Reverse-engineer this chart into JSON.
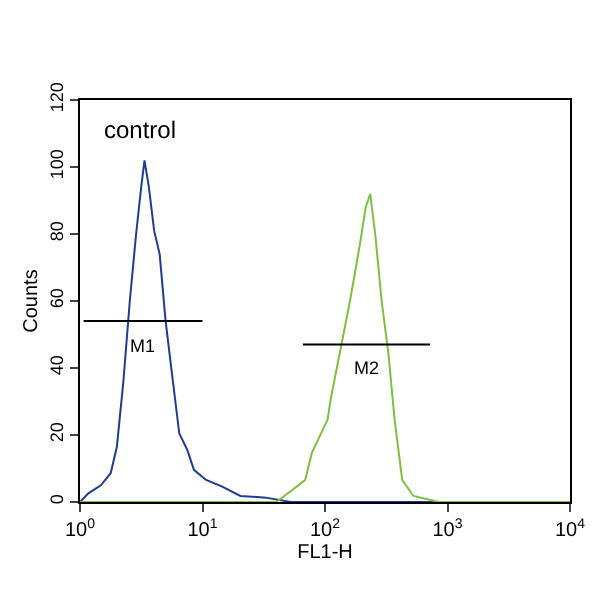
{
  "chart_data": {
    "type": "line",
    "xlabel": "FL1-H",
    "ylabel": "Counts",
    "log": "x",
    "xlim": [
      1,
      10000
    ],
    "ylim": [
      0,
      120
    ],
    "xticks": [
      {
        "value": 1,
        "label": "10$^{0}$"
      },
      {
        "value": 10,
        "label": "10$^{1}$"
      },
      {
        "value": 100,
        "label": "10$^{2}$"
      },
      {
        "value": 1000,
        "label": "10$^{3}$"
      },
      {
        "value": 10000,
        "label": "10$^{4}$"
      }
    ],
    "yticks": [
      0,
      20,
      40,
      60,
      80,
      100,
      120
    ],
    "series": [
      {
        "color": "#1f3d8c",
        "x": [
          1,
          1.17,
          1.48,
          1.78,
          2.0,
          2.26,
          2.55,
          2.87,
          3.16,
          3.36,
          3.65,
          4.03,
          4.47,
          5.0,
          5.69,
          6.46,
          7.5,
          8.51,
          10.7,
          14.5,
          20.4,
          33,
          52.5,
          10000
        ],
        "values": [
          0,
          2.6,
          5,
          8.6,
          16.5,
          36,
          60,
          80,
          94,
          102,
          94,
          81,
          74,
          54,
          37,
          20.5,
          15.6,
          9.6,
          6.6,
          4.6,
          1.8,
          1.3,
          0,
          0
        ]
      },
      {
        "color": "#7cc043",
        "x": [
          1,
          40,
          54,
          69,
          78,
          105,
          111,
          160,
          191,
          215,
          234,
          257,
          290,
          329,
          370,
          427,
          527,
          851,
          10000
        ],
        "values": [
          0,
          0,
          3.6,
          6.6,
          14.6,
          24.6,
          30.5,
          60,
          76,
          88,
          92,
          80,
          60,
          44.5,
          24.6,
          6.6,
          1.8,
          0,
          0
        ]
      },
      {
        "color": "#000000",
        "x": [
          1.07,
          10
        ],
        "values": [
          54,
          54
        ]
      },
      {
        "color": "#000000",
        "x": [
          66,
          720
        ],
        "values": [
          47,
          47
        ]
      }
    ],
    "annotations": [
      "control",
      "M1",
      "M2"
    ]
  }
}
